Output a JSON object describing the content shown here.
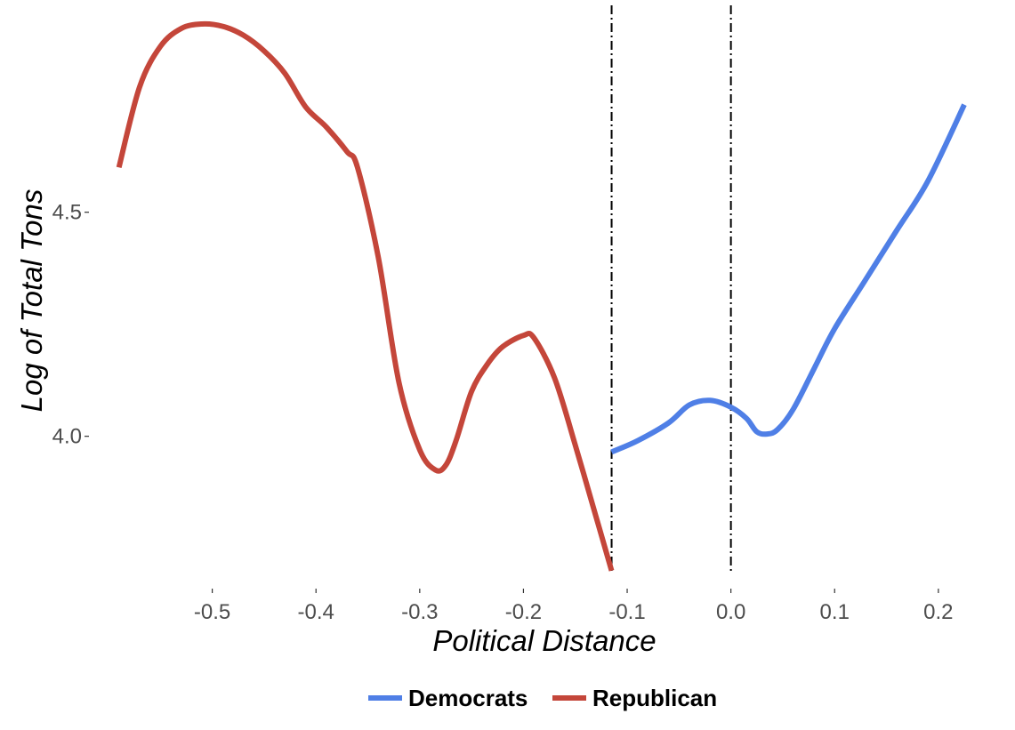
{
  "chart_data": {
    "type": "line",
    "title": "",
    "xlabel": "Political Distance",
    "ylabel": "Log of Total Tons",
    "xlim": [
      -0.6,
      0.237
    ],
    "ylim": [
      3.66,
      4.93
    ],
    "x_ticks": [
      -0.5,
      -0.4,
      -0.3,
      -0.2,
      -0.1,
      0.0,
      0.1,
      0.2
    ],
    "x_tick_labels": [
      "-0.5",
      "-0.4",
      "-0.3",
      "-0.2",
      "-0.1",
      "0.0",
      "0.1",
      "0.2"
    ],
    "y_ticks": [
      4.0,
      4.5
    ],
    "y_tick_labels": [
      "4.0",
      "4.5"
    ],
    "grid": false,
    "legend_position": "bottom",
    "vlines": [
      {
        "x": -0.115,
        "style": "dash-dot",
        "color": "#000000"
      },
      {
        "x": 0.0,
        "style": "dash-dot",
        "color": "#000000"
      }
    ],
    "series": [
      {
        "name": "Democrats",
        "color": "#4f7fe6",
        "x": [
          -0.115,
          -0.09,
          -0.06,
          -0.04,
          -0.02,
          0.0,
          0.015,
          0.025,
          0.035,
          0.045,
          0.06,
          0.08,
          0.1,
          0.13,
          0.16,
          0.19,
          0.225
        ],
        "y": [
          3.965,
          3.99,
          4.03,
          4.07,
          4.08,
          4.065,
          4.04,
          4.01,
          4.005,
          4.015,
          4.06,
          4.15,
          4.24,
          4.35,
          4.46,
          4.57,
          4.74
        ]
      },
      {
        "name": "Republican",
        "color": "#c4463a",
        "x": [
          -0.59,
          -0.57,
          -0.55,
          -0.53,
          -0.51,
          -0.49,
          -0.47,
          -0.45,
          -0.43,
          -0.41,
          -0.39,
          -0.37,
          -0.36,
          -0.34,
          -0.32,
          -0.3,
          -0.285,
          -0.275,
          -0.265,
          -0.25,
          -0.235,
          -0.22,
          -0.2,
          -0.19,
          -0.17,
          -0.15,
          -0.13,
          -0.115
        ],
        "y": [
          4.6,
          4.78,
          4.87,
          4.91,
          4.92,
          4.915,
          4.895,
          4.86,
          4.81,
          4.735,
          4.69,
          4.635,
          4.6,
          4.4,
          4.12,
          3.97,
          3.925,
          3.935,
          3.99,
          4.1,
          4.16,
          4.2,
          4.225,
          4.22,
          4.13,
          3.98,
          3.82,
          3.7
        ]
      }
    ]
  }
}
